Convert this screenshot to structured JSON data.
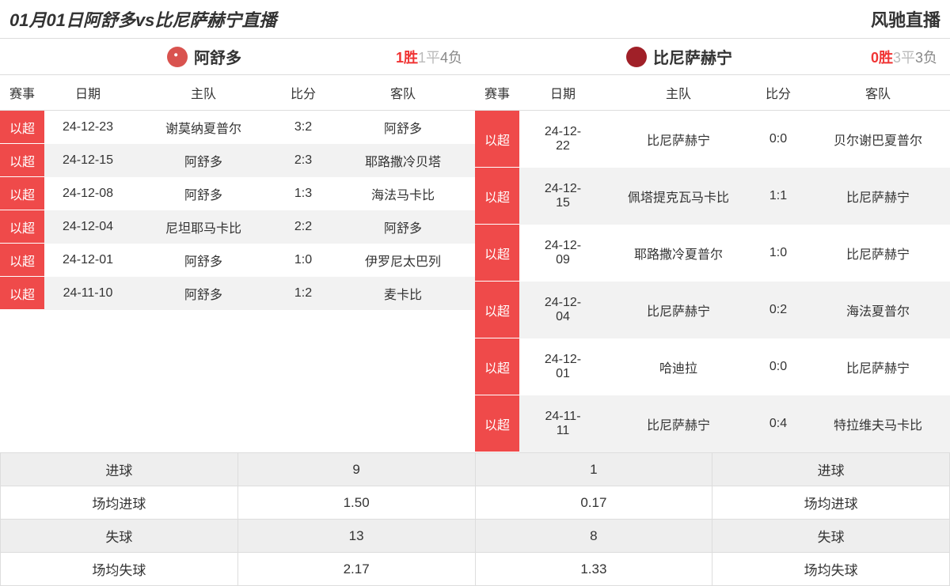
{
  "header": {
    "title": "01月01日阿舒多vs比尼萨赫宁直播",
    "brand": "风驰直播"
  },
  "columns": {
    "league": "赛事",
    "date": "日期",
    "home": "主队",
    "score": "比分",
    "away": "客队"
  },
  "left": {
    "team_name": "阿舒多",
    "record": {
      "win_val": "1",
      "win_suffix": "胜",
      "draw_val": "1",
      "draw_suffix": "平",
      "loss_val": "4",
      "loss_suffix": "负"
    },
    "matches": [
      {
        "league": "以超",
        "date": "24-12-23",
        "home": "谢莫纳夏普尔",
        "score": "3:2",
        "away": "阿舒多"
      },
      {
        "league": "以超",
        "date": "24-12-15",
        "home": "阿舒多",
        "score": "2:3",
        "away": "耶路撒冷贝塔"
      },
      {
        "league": "以超",
        "date": "24-12-08",
        "home": "阿舒多",
        "score": "1:3",
        "away": "海法马卡比"
      },
      {
        "league": "以超",
        "date": "24-12-04",
        "home": "尼坦耶马卡比",
        "score": "2:2",
        "away": "阿舒多"
      },
      {
        "league": "以超",
        "date": "24-12-01",
        "home": "阿舒多",
        "score": "1:0",
        "away": "伊罗尼太巴列"
      },
      {
        "league": "以超",
        "date": "24-11-10",
        "home": "阿舒多",
        "score": "1:2",
        "away": "麦卡比"
      }
    ]
  },
  "right": {
    "team_name": "比尼萨赫宁",
    "record": {
      "win_val": "0",
      "win_suffix": "胜",
      "draw_val": "3",
      "draw_suffix": "平",
      "loss_val": "3",
      "loss_suffix": "负"
    },
    "matches": [
      {
        "league": "以超",
        "date": "24-12-22",
        "home": "比尼萨赫宁",
        "score": "0:0",
        "away": "贝尔谢巴夏普尔"
      },
      {
        "league": "以超",
        "date": "24-12-15",
        "home": "佩塔提克瓦马卡比",
        "score": "1:1",
        "away": "比尼萨赫宁"
      },
      {
        "league": "以超",
        "date": "24-12-09",
        "home": "耶路撒冷夏普尔",
        "score": "1:0",
        "away": "比尼萨赫宁"
      },
      {
        "league": "以超",
        "date": "24-12-04",
        "home": "比尼萨赫宁",
        "score": "0:2",
        "away": "海法夏普尔"
      },
      {
        "league": "以超",
        "date": "24-12-01",
        "home": "哈迪拉",
        "score": "0:0",
        "away": "比尼萨赫宁"
      },
      {
        "league": "以超",
        "date": "24-11-11",
        "home": "比尼萨赫宁",
        "score": "0:4",
        "away": "特拉维夫马卡比"
      }
    ]
  },
  "stats": {
    "labels": {
      "goals": "进球",
      "avg_goals": "场均进球",
      "conceded": "失球",
      "avg_conceded": "场均失球"
    },
    "left": {
      "goals": "9",
      "avg_goals": "1.50",
      "conceded": "13",
      "avg_conceded": "2.17"
    },
    "right": {
      "goals": "1",
      "avg_goals": "0.17",
      "conceded": "8",
      "avg_conceded": "1.33"
    }
  },
  "colors": {
    "league_tag_bg": "#ef4a4a",
    "league_tag_text": "#ffffff",
    "row_alt_bg": "#f2f2f2",
    "border": "#dddddd",
    "win_color": "#f03434",
    "draw_color": "#bbbbbb",
    "loss_color": "#888888"
  }
}
